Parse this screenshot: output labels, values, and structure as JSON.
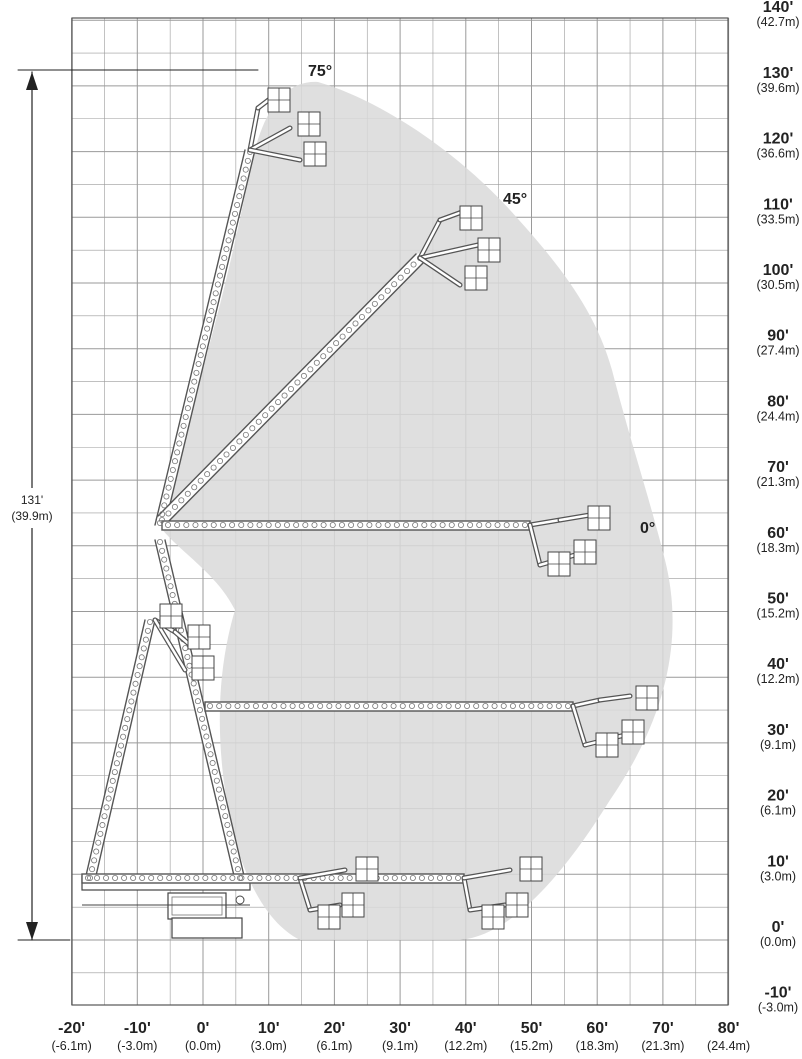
{
  "diagram": {
    "y_axis_ticks": [
      {
        "ft": "140'",
        "m": "(42.7m)",
        "v": 140
      },
      {
        "ft": "130'",
        "m": "(39.6m)",
        "v": 130
      },
      {
        "ft": "120'",
        "m": "(36.6m)",
        "v": 120
      },
      {
        "ft": "110'",
        "m": "(33.5m)",
        "v": 110
      },
      {
        "ft": "100'",
        "m": "(30.5m)",
        "v": 100
      },
      {
        "ft": "90'",
        "m": "(27.4m)",
        "v": 90
      },
      {
        "ft": "80'",
        "m": "(24.4m)",
        "v": 80
      },
      {
        "ft": "70'",
        "m": "(21.3m)",
        "v": 70
      },
      {
        "ft": "60'",
        "m": "(18.3m)",
        "v": 60
      },
      {
        "ft": "50'",
        "m": "(15.2m)",
        "v": 50
      },
      {
        "ft": "40'",
        "m": "(12.2m)",
        "v": 40
      },
      {
        "ft": "30'",
        "m": "(9.1m)",
        "v": 30
      },
      {
        "ft": "20'",
        "m": "(6.1m)",
        "v": 20
      },
      {
        "ft": "10'",
        "m": "(3.0m)",
        "v": 10
      },
      {
        "ft": "0'",
        "m": "(0.0m)",
        "v": 0
      },
      {
        "ft": "-10'",
        "m": "(-3.0m)",
        "v": -10
      }
    ],
    "x_axis_ticks": [
      {
        "ft": "-20'",
        "m": "(-6.1m)",
        "v": -20
      },
      {
        "ft": "-10'",
        "m": "(-3.0m)",
        "v": -10
      },
      {
        "ft": "0'",
        "m": "(0.0m)",
        "v": 0
      },
      {
        "ft": "10'",
        "m": "(3.0m)",
        "v": 10
      },
      {
        "ft": "20'",
        "m": "(6.1m)",
        "v": 20
      },
      {
        "ft": "30'",
        "m": "(9.1m)",
        "v": 30
      },
      {
        "ft": "40'",
        "m": "(12.2m)",
        "v": 40
      },
      {
        "ft": "50'",
        "m": "(15.2m)",
        "v": 50
      },
      {
        "ft": "60'",
        "m": "(18.3m)",
        "v": 60
      },
      {
        "ft": "70'",
        "m": "(21.3m)",
        "v": 70
      },
      {
        "ft": "80'",
        "m": "(24.4m)",
        "v": 80
      }
    ],
    "angle_labels": [
      {
        "text": "75°"
      },
      {
        "text": "45°"
      },
      {
        "text": "0°"
      }
    ],
    "height_dimension": {
      "ft": "131'",
      "m": "(39.9m)"
    },
    "colors": {
      "grid": "#7a7a7a",
      "envelope": "#d9d9d9",
      "boom": "#555555",
      "text": "#222222"
    }
  }
}
